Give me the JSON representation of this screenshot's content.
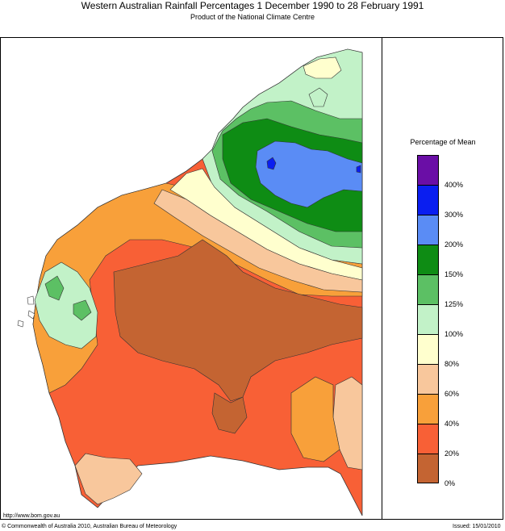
{
  "title": "Western Australian Rainfall Percentages 1 December 1990 to 28 February 1991",
  "subtitle": "Product of the National Climate Centre",
  "legend": {
    "title": "Percentage of Mean",
    "bands": [
      {
        "color": "#6a0ea6"
      },
      {
        "color": "#0a1ef0"
      },
      {
        "color": "#5a8cf5"
      },
      {
        "color": "#0e8c14"
      },
      {
        "color": "#5cc064"
      },
      {
        "color": "#c2f2c8"
      },
      {
        "color": "#ffffce"
      },
      {
        "color": "#f8c79c"
      },
      {
        "color": "#f8a03a"
      },
      {
        "color": "#f86036"
      },
      {
        "color": "#c46432"
      }
    ],
    "ticks": [
      "400%",
      "300%",
      "200%",
      "150%",
      "125%",
      "100%",
      "80%",
      "60%",
      "40%",
      "20%",
      "0%"
    ]
  },
  "footer": {
    "url": "http://www.bom.gov.au",
    "copyright": "© Commonwealth of Australia 2010, Australian Bureau of Meteorology",
    "issued": "Issued: 15/01/2010"
  }
}
